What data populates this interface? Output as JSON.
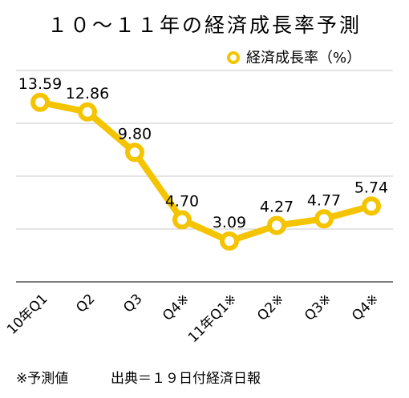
{
  "chart_data": {
    "type": "line",
    "title": "１０～１１年の経済成長率予測",
    "categories": [
      "10年Q1",
      "Q2",
      "Q3",
      "Q4※",
      "11年Q1※",
      "Q2※",
      "Q3※",
      "Q4※"
    ],
    "series": [
      {
        "name": "経済成長率（%）",
        "values": [
          13.59,
          12.86,
          9.8,
          4.7,
          3.09,
          4.27,
          4.77,
          5.74
        ]
      }
    ],
    "data_labels": [
      "13.59",
      "12.86",
      "9.80",
      "4.70",
      "3.09",
      "4.27",
      "4.77",
      "5.74"
    ],
    "ylim": [
      0,
      16
    ],
    "grid": true,
    "legend_position": "top-right",
    "series_color": "#F5C400",
    "grid_color": "#c8c8c8",
    "axis_color": "#555555"
  },
  "footer": {
    "note": "※予測値",
    "source": "出典＝１９日付経済日報"
  }
}
